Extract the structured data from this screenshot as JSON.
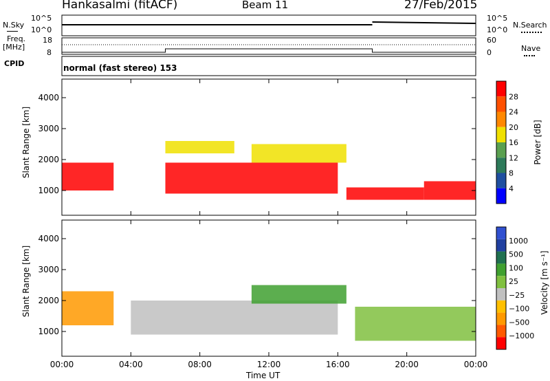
{
  "header": {
    "station": "Hankasalmi (fitACF)",
    "beam": "Beam 11",
    "date": "27/Feb/2015"
  },
  "strip": {
    "nsky_label": "N.Sky",
    "nsky_ticks": [
      "10^5",
      "10^0"
    ],
    "nsearch_label": "N.Search",
    "nsearch_ticks": [
      "10^5",
      "10^0"
    ],
    "freq_label": "Freq.",
    "freq_unit": "[MHz]",
    "freq_ticks": [
      "18",
      "8"
    ],
    "nave_label": "Nave",
    "nave_ticks": [
      "60",
      "0"
    ],
    "cpid_label": "CPID",
    "cpid_text": "normal (fast stereo) 153"
  },
  "colors": {
    "power": [
      "#0000ff",
      "#1f4fa0",
      "#2d7a5a",
      "#5aa050",
      "#f0e000",
      "#ff8800",
      "#ff5000",
      "#ff0000"
    ],
    "velocity": [
      "#ff0000",
      "#ff5a00",
      "#ff9900",
      "#ffc000",
      "#c0c0c0",
      "#80c040",
      "#40a030",
      "#207050",
      "#2040a0",
      "#3050d0"
    ]
  },
  "chart_data": [
    {
      "type": "heatmap",
      "parameter": "Power",
      "ylabel": "Slant Range [km]",
      "yticks": [
        "4000",
        "3000",
        "2000",
        "1000"
      ],
      "ylim": [
        200,
        4600
      ],
      "xticks": [
        "00:00",
        "04:00",
        "08:00",
        "12:00",
        "16:00",
        "20:00",
        "00:00"
      ],
      "xlim_hours": [
        0,
        24
      ],
      "colorbar_label": "Power [dB]",
      "colorbar_ticks": [
        "28",
        "24",
        "20",
        "16",
        "12",
        "8",
        "4"
      ],
      "regions": [
        {
          "x": [
            0,
            3
          ],
          "y": [
            1000,
            1900
          ],
          "level": "high"
        },
        {
          "x": [
            6,
            16
          ],
          "y": [
            900,
            1900
          ],
          "level": "high"
        },
        {
          "x": [
            6,
            10
          ],
          "y": [
            2200,
            2600
          ],
          "level": "medium"
        },
        {
          "x": [
            11,
            16.5
          ],
          "y": [
            1900,
            2500
          ],
          "level": "medium"
        },
        {
          "x": [
            16.5,
            21
          ],
          "y": [
            700,
            1100
          ],
          "level": "high"
        },
        {
          "x": [
            21,
            24
          ],
          "y": [
            700,
            1300
          ],
          "level": "high"
        }
      ]
    },
    {
      "type": "heatmap",
      "parameter": "Velocity",
      "ylabel": "Slant Range [km]",
      "yticks": [
        "4000",
        "3000",
        "2000",
        "1000"
      ],
      "ylim": [
        200,
        4600
      ],
      "xticks": [
        "00:00",
        "04:00",
        "08:00",
        "12:00",
        "16:00",
        "20:00",
        "00:00"
      ],
      "xlim_hours": [
        0,
        24
      ],
      "xlabel": "Time UT",
      "colorbar_label": "Velocity [m s⁻¹]",
      "colorbar_ticks": [
        "1000",
        "500",
        "100",
        "25",
        "−25",
        "−100",
        "−500",
        "−1000"
      ],
      "regions": [
        {
          "x": [
            0,
            3
          ],
          "y": [
            1200,
            2300
          ],
          "level": "negative"
        },
        {
          "x": [
            4,
            16
          ],
          "y": [
            900,
            2000
          ],
          "level": "ground"
        },
        {
          "x": [
            11,
            16.5
          ],
          "y": [
            1900,
            2500
          ],
          "level": "positive"
        },
        {
          "x": [
            17,
            24
          ],
          "y": [
            700,
            1800
          ],
          "level": "mixed"
        }
      ]
    }
  ],
  "time_axis": {
    "xlabel": "Time UT"
  }
}
